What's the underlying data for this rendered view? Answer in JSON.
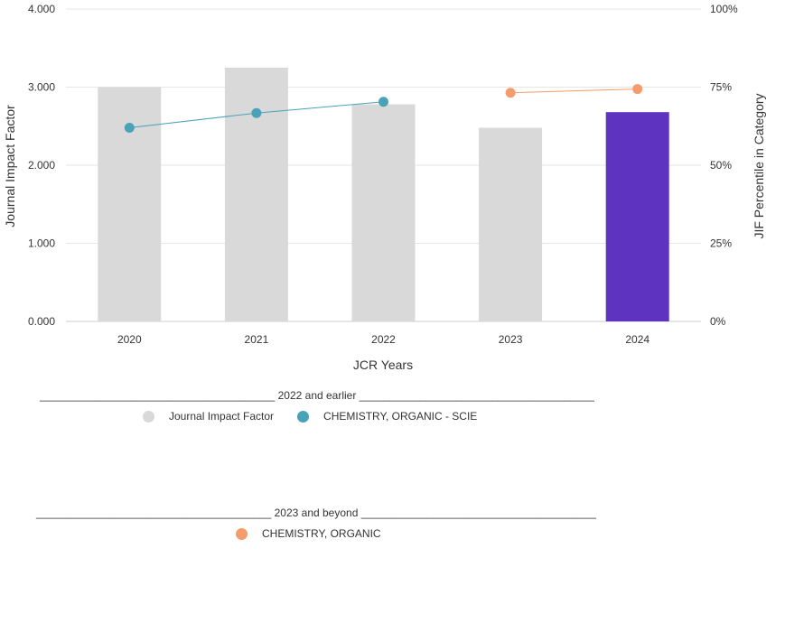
{
  "chart_data": {
    "type": "bar",
    "xlabel": "JCR Years",
    "ylabel_left": "Journal Impact Factor",
    "ylabel_right": "JIF Percentile in Category",
    "categories": [
      "2020",
      "2021",
      "2022",
      "2023",
      "2024"
    ],
    "ylim_left": [
      0,
      4
    ],
    "left_ticks": [
      "0.000",
      "1.000",
      "2.000",
      "3.000",
      "4.000"
    ],
    "ylim_right": [
      0,
      100
    ],
    "right_ticks": [
      "0%",
      "25%",
      "50%",
      "75%",
      "100%"
    ],
    "grid": true,
    "bars": {
      "name": "Journal Impact Factor",
      "values": [
        3.0,
        3.25,
        2.78,
        2.48,
        2.68
      ],
      "colors": [
        "#d9d9d9",
        "#d9d9d9",
        "#d9d9d9",
        "#d9d9d9",
        "#5e33bf"
      ]
    },
    "series": [
      {
        "name": "CHEMISTRY, ORGANIC - SCIE",
        "axis": "right",
        "color": "#4aa2b8",
        "x": [
          "2020",
          "2021",
          "2022"
        ],
        "values": [
          62.0,
          66.7,
          70.3
        ]
      },
      {
        "name": "CHEMISTRY, ORGANIC",
        "axis": "right",
        "color": "#f59c6c",
        "x": [
          "2023",
          "2024"
        ],
        "values": [
          73.2,
          74.4
        ]
      }
    ]
  },
  "legend": {
    "group1": {
      "title": "_______________________________________ 2022 and earlier _______________________________________",
      "items": [
        {
          "label": "Journal Impact Factor",
          "color": "#d9d9d9"
        },
        {
          "label": "CHEMISTRY, ORGANIC - SCIE",
          "color": "#4aa2b8"
        }
      ]
    },
    "group2": {
      "title": "_______________________________________ 2023 and beyond _______________________________________",
      "items": [
        {
          "label": "CHEMISTRY, ORGANIC",
          "color": "#f59c6c"
        }
      ]
    }
  }
}
